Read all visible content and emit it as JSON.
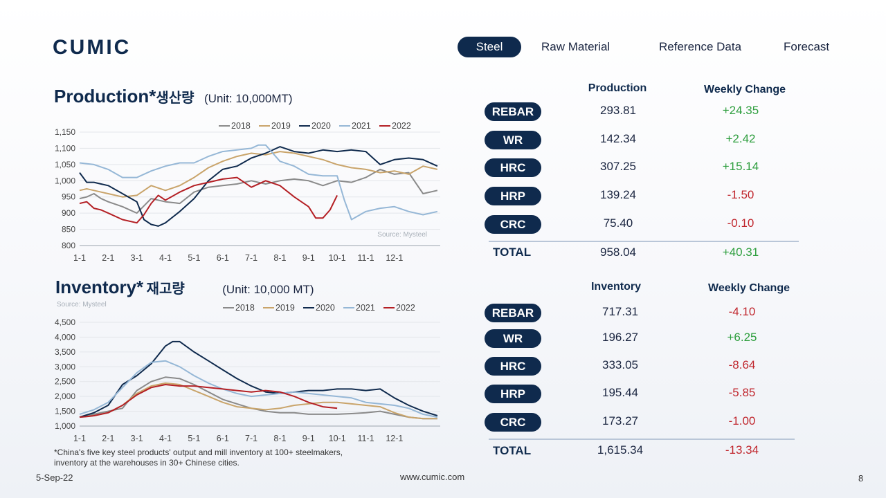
{
  "brand": {
    "name": "CUMIC",
    "website": "www.cumic.com"
  },
  "nav": {
    "items": [
      "Steel",
      "Raw Material",
      "Reference Data",
      "Forecast"
    ],
    "active": "Steel"
  },
  "colors": {
    "navy": "#0f2a4d",
    "positive": "#2e9e3e",
    "negative": "#c0262d"
  },
  "production": {
    "title": "Production*",
    "title_kr": "생산량",
    "unit": "(Unit: 10,000MT)",
    "source": "Source: Mysteel",
    "col_value": "Production",
    "col_change": "Weekly Change",
    "rows": [
      {
        "label": "REBAR",
        "value": "293.81",
        "change": "+24.35"
      },
      {
        "label": "WR",
        "value": "142.34",
        "change": "+2.42"
      },
      {
        "label": "HRC",
        "value": "307.25",
        "change": "+15.14"
      },
      {
        "label": "HRP",
        "value": "139.24",
        "change": "-1.50"
      },
      {
        "label": "CRC",
        "value": "75.40",
        "change": "-0.10"
      }
    ],
    "total": {
      "label": "TOTAL",
      "value": "958.04",
      "change": "+40.31"
    }
  },
  "inventory": {
    "title": "Inventory*",
    "title_kr": "재고량",
    "unit": "(Unit: 10,000 MT)",
    "source": "Source: Mysteel",
    "col_value": "Inventory",
    "col_change": "Weekly Change",
    "rows": [
      {
        "label": "REBAR",
        "value": "717.31",
        "change": "-4.10"
      },
      {
        "label": "WR",
        "value": "196.27",
        "change": "+6.25"
      },
      {
        "label": "HRC",
        "value": "333.05",
        "change": "-8.64"
      },
      {
        "label": "HRP",
        "value": "195.44",
        "change": "-5.85"
      },
      {
        "label": "CRC",
        "value": "173.27",
        "change": "-1.00"
      }
    ],
    "total": {
      "label": "TOTAL",
      "value": "1,615.34",
      "change": "-13.34"
    }
  },
  "footnote": "*China's five key steel products' output and mill inventory at 100+ steelmakers, inventory at the warehouses in 30+ Chinese cities.",
  "footer": {
    "date": "5-Sep-22",
    "page": "8"
  },
  "chart_data": [
    {
      "type": "line",
      "categories": [
        "1-1",
        "2-1",
        "3-1",
        "4-1",
        "5-1",
        "6-1",
        "7-1",
        "8-1",
        "9-1",
        "10-1",
        "11-1",
        "12-1"
      ],
      "ylim": [
        800,
        1150
      ],
      "yticks": [
        800,
        850,
        900,
        950,
        1000,
        1050,
        1100,
        1150
      ],
      "ytick_labels": [
        "800",
        "850",
        "900",
        "950",
        "1,000",
        "1,050",
        "1,100",
        "1,150"
      ],
      "legend_position": "top",
      "series": [
        {
          "name": "2018",
          "color": "#8a8a8a",
          "x": [
            0,
            0.25,
            0.5,
            0.75,
            1,
            1.5,
            2,
            2.5,
            3,
            3.5,
            4,
            4.5,
            5,
            5.5,
            6,
            6.5,
            7,
            7.5,
            8,
            8.5,
            9,
            9.5,
            10,
            10.5,
            11,
            11.5,
            12,
            12.5
          ],
          "values": [
            945,
            950,
            960,
            945,
            935,
            920,
            900,
            945,
            935,
            930,
            965,
            980,
            985,
            990,
            1000,
            990,
            1000,
            1005,
            1000,
            985,
            1000,
            995,
            1010,
            1035,
            1020,
            1025,
            960,
            970
          ]
        },
        {
          "name": "2019",
          "color": "#c9a46a",
          "x": [
            0,
            0.25,
            0.5,
            0.75,
            1,
            1.5,
            2,
            2.5,
            3,
            3.5,
            4,
            4.5,
            5,
            5.5,
            6,
            6.5,
            7,
            7.5,
            8,
            8.5,
            9,
            9.5,
            10,
            10.5,
            11,
            11.5,
            12,
            12.5
          ],
          "values": [
            970,
            975,
            970,
            965,
            960,
            950,
            955,
            985,
            970,
            985,
            1010,
            1040,
            1060,
            1075,
            1085,
            1080,
            1090,
            1085,
            1075,
            1065,
            1050,
            1040,
            1035,
            1025,
            1030,
            1020,
            1045,
            1035
          ]
        },
        {
          "name": "2020",
          "color": "#0f2a4d",
          "x": [
            0,
            0.25,
            0.5,
            0.75,
            1,
            1.5,
            2,
            2.25,
            2.5,
            2.75,
            3,
            3.5,
            4,
            4.5,
            5,
            5.5,
            6,
            6.5,
            7,
            7.5,
            8,
            8.5,
            9,
            9.5,
            10,
            10.5,
            11,
            11.5,
            12,
            12.5
          ],
          "values": [
            1025,
            995,
            995,
            990,
            985,
            960,
            935,
            880,
            865,
            860,
            870,
            905,
            945,
            1000,
            1035,
            1045,
            1070,
            1085,
            1105,
            1090,
            1085,
            1095,
            1090,
            1095,
            1090,
            1050,
            1065,
            1070,
            1065,
            1045
          ]
        },
        {
          "name": "2021",
          "color": "#95b7d6",
          "x": [
            0,
            0.5,
            1,
            1.5,
            2,
            2.5,
            3,
            3.5,
            4,
            4.5,
            5,
            5.5,
            6,
            6.25,
            6.5,
            7,
            7.5,
            8,
            8.5,
            9,
            9.25,
            9.5,
            10,
            10.5,
            11,
            11.5,
            12,
            12.5
          ],
          "values": [
            1055,
            1050,
            1035,
            1010,
            1010,
            1030,
            1045,
            1055,
            1055,
            1075,
            1090,
            1095,
            1100,
            1110,
            1110,
            1060,
            1045,
            1020,
            1015,
            1015,
            940,
            880,
            905,
            915,
            920,
            905,
            895,
            905
          ]
        },
        {
          "name": "2022",
          "color": "#b41f24",
          "x": [
            0,
            0.25,
            0.5,
            0.75,
            1,
            1.5,
            2,
            2.25,
            2.5,
            2.75,
            3,
            3.5,
            4,
            4.5,
            5,
            5.5,
            6,
            6.5,
            7,
            7.5,
            8,
            8.25,
            8.5,
            8.75,
            9
          ],
          "values": [
            930,
            935,
            915,
            910,
            900,
            880,
            870,
            895,
            930,
            955,
            940,
            965,
            985,
            995,
            1005,
            1010,
            980,
            1000,
            985,
            950,
            920,
            885,
            885,
            910,
            955
          ]
        }
      ]
    },
    {
      "type": "line",
      "categories": [
        "1-1",
        "2-1",
        "3-1",
        "4-1",
        "5-1",
        "6-1",
        "7-1",
        "8-1",
        "9-1",
        "10-1",
        "11-1",
        "12-1"
      ],
      "ylim": [
        1000,
        4500
      ],
      "yticks": [
        1000,
        1500,
        2000,
        2500,
        3000,
        3500,
        4000,
        4500
      ],
      "ytick_labels": [
        "1,000",
        "1,500",
        "2,000",
        "2,500",
        "3,000",
        "3,500",
        "4,000",
        "4,500"
      ],
      "legend_position": "top",
      "series": [
        {
          "name": "2018",
          "color": "#8a8a8a",
          "x": [
            0,
            0.5,
            1,
            1.5,
            2,
            2.5,
            3,
            3.5,
            4,
            4.5,
            5,
            5.5,
            6,
            6.5,
            7,
            7.5,
            8,
            8.5,
            9,
            9.5,
            10,
            10.5,
            11,
            11.5,
            12,
            12.5
          ],
          "values": [
            1300,
            1400,
            1500,
            1600,
            2200,
            2500,
            2650,
            2600,
            2400,
            2150,
            1900,
            1750,
            1600,
            1500,
            1450,
            1450,
            1400,
            1400,
            1400,
            1420,
            1450,
            1500,
            1400,
            1300,
            1250,
            1250
          ]
        },
        {
          "name": "2019",
          "color": "#c9a46a",
          "x": [
            0,
            0.5,
            1,
            1.5,
            2,
            2.5,
            3,
            3.5,
            4,
            4.5,
            5,
            5.5,
            6,
            6.5,
            7,
            7.5,
            8,
            8.5,
            9,
            9.5,
            10,
            10.5,
            11,
            11.5,
            12,
            12.5
          ],
          "values": [
            1300,
            1350,
            1450,
            1700,
            2100,
            2350,
            2450,
            2400,
            2200,
            2000,
            1800,
            1650,
            1600,
            1550,
            1600,
            1700,
            1750,
            1800,
            1800,
            1750,
            1700,
            1650,
            1450,
            1300,
            1250,
            1250
          ]
        },
        {
          "name": "2020",
          "color": "#0f2a4d",
          "x": [
            0,
            0.5,
            1,
            1.5,
            2,
            2.5,
            3,
            3.25,
            3.5,
            4,
            4.5,
            5,
            5.5,
            6,
            6.5,
            7,
            7.5,
            8,
            8.5,
            9,
            9.5,
            10,
            10.5,
            11,
            11.5,
            12,
            12.5
          ],
          "values": [
            1300,
            1450,
            1700,
            2400,
            2700,
            3100,
            3700,
            3850,
            3850,
            3500,
            3200,
            2900,
            2600,
            2350,
            2150,
            2100,
            2150,
            2200,
            2200,
            2250,
            2250,
            2200,
            2250,
            1950,
            1700,
            1500,
            1350
          ]
        },
        {
          "name": "2021",
          "color": "#95b7d6",
          "x": [
            0,
            0.5,
            1,
            1.5,
            2,
            2.5,
            3,
            3.5,
            4,
            4.5,
            5,
            5.5,
            6,
            6.5,
            7,
            7.5,
            8,
            8.5,
            9,
            9.5,
            10,
            10.5,
            11,
            11.5,
            12,
            12.5
          ],
          "values": [
            1400,
            1550,
            1800,
            2300,
            2800,
            3150,
            3200,
            3000,
            2700,
            2450,
            2250,
            2100,
            2000,
            2050,
            2100,
            2150,
            2100,
            2050,
            2000,
            1950,
            1800,
            1750,
            1700,
            1600,
            1400,
            1300
          ]
        },
        {
          "name": "2022",
          "color": "#b41f24",
          "x": [
            0,
            0.25,
            0.5,
            0.75,
            1,
            1.5,
            2,
            2.5,
            3,
            3.5,
            4,
            4.5,
            5,
            5.5,
            6,
            6.5,
            7,
            7.5,
            8,
            8.5,
            9
          ],
          "values": [
            1300,
            1320,
            1350,
            1400,
            1450,
            1700,
            2050,
            2300,
            2400,
            2350,
            2350,
            2300,
            2250,
            2200,
            2150,
            2200,
            2150,
            2000,
            1800,
            1650,
            1600
          ]
        }
      ]
    }
  ]
}
